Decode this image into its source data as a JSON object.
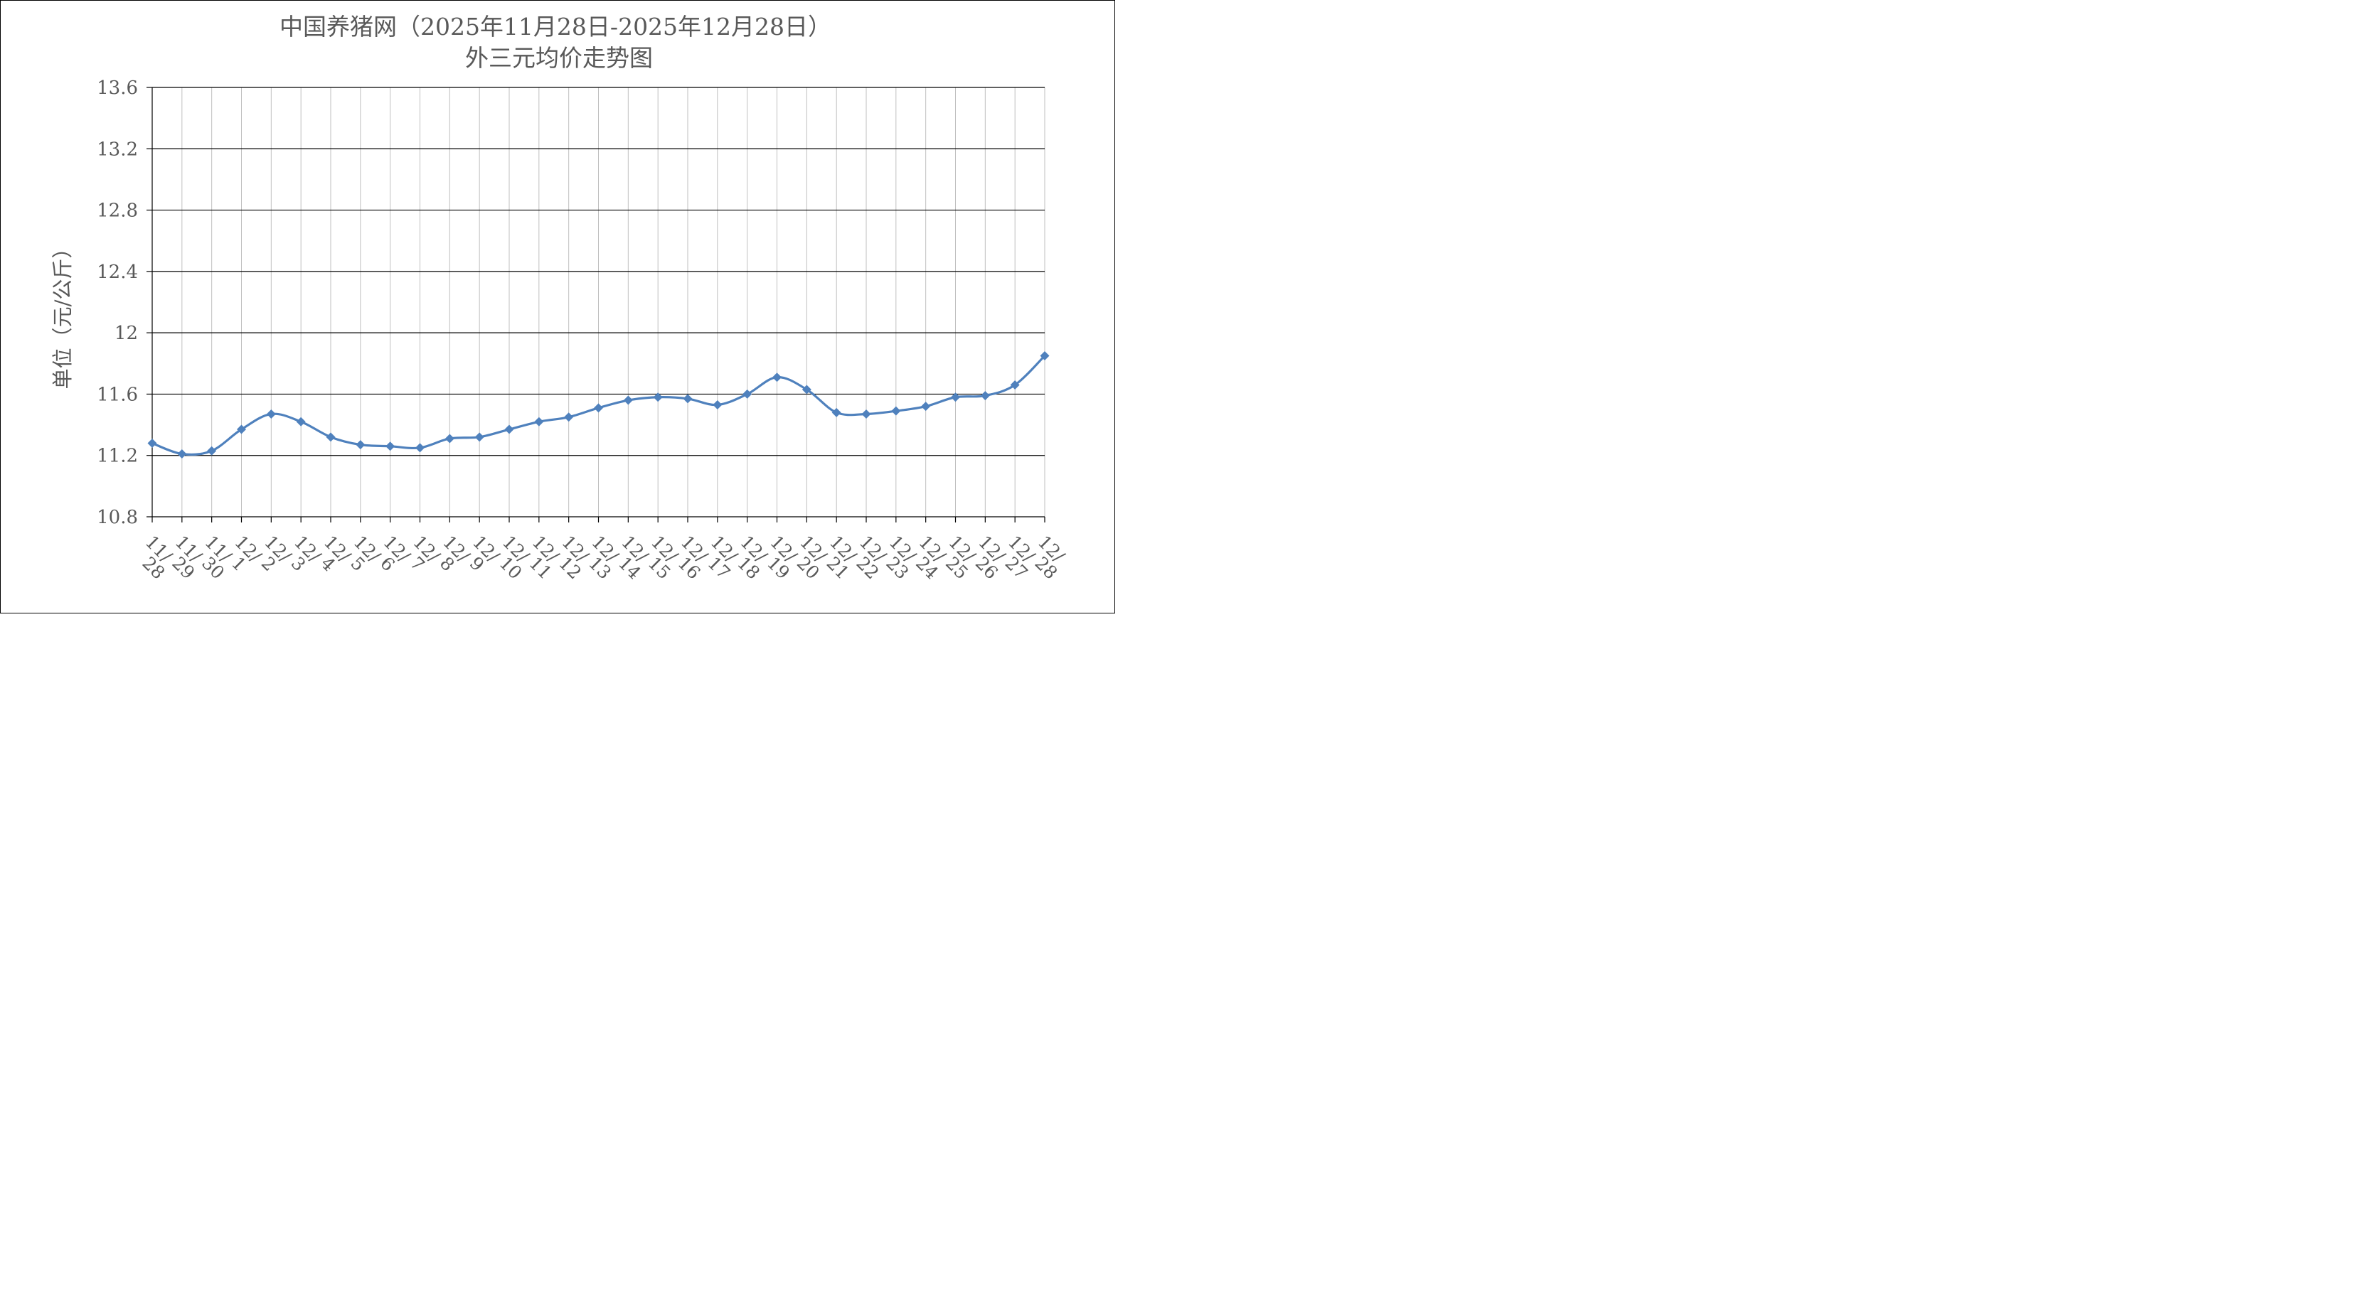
{
  "chart_data": {
    "type": "line",
    "title": "中国养猪网（2025年11月28日-2025年12月28日）",
    "subtitle": "外三元均价走势图",
    "ylabel": "单位（元/公斤）",
    "ylim": [
      10.8,
      13.6
    ],
    "yticks": [
      "10.8",
      "11.2",
      "11.6",
      "12",
      "12.4",
      "12.8",
      "13.2",
      "13.6"
    ],
    "grid": true,
    "smooth": true,
    "marker": "diamond",
    "categories": [
      [
        "11",
        "28"
      ],
      [
        "11",
        "29"
      ],
      [
        "11",
        "30"
      ],
      [
        "12",
        "1"
      ],
      [
        "12",
        "2"
      ],
      [
        "12",
        "3"
      ],
      [
        "12",
        "4"
      ],
      [
        "12",
        "5"
      ],
      [
        "12",
        "6"
      ],
      [
        "12",
        "7"
      ],
      [
        "12",
        "8"
      ],
      [
        "12",
        "9"
      ],
      [
        "12",
        "10"
      ],
      [
        "12",
        "11"
      ],
      [
        "12",
        "12"
      ],
      [
        "12",
        "13"
      ],
      [
        "12",
        "14"
      ],
      [
        "12",
        "15"
      ],
      [
        "12",
        "16"
      ],
      [
        "12",
        "17"
      ],
      [
        "12",
        "18"
      ],
      [
        "12",
        "19"
      ],
      [
        "12",
        "20"
      ],
      [
        "12",
        "21"
      ],
      [
        "12",
        "22"
      ],
      [
        "12",
        "23"
      ],
      [
        "12",
        "24"
      ],
      [
        "12",
        "25"
      ],
      [
        "12",
        "26"
      ],
      [
        "12",
        "27"
      ],
      [
        "12",
        "28"
      ]
    ],
    "series": [
      {
        "color": "#4F81BD",
        "values": [
          11.28,
          11.21,
          11.23,
          11.37,
          11.47,
          11.42,
          11.32,
          11.27,
          11.26,
          11.25,
          11.31,
          11.32,
          11.37,
          11.42,
          11.45,
          11.51,
          11.56,
          11.58,
          11.57,
          11.53,
          11.6,
          11.71,
          11.63,
          11.48,
          11.47,
          11.49,
          11.52,
          11.58,
          11.59,
          11.66,
          11.85
        ]
      }
    ]
  }
}
